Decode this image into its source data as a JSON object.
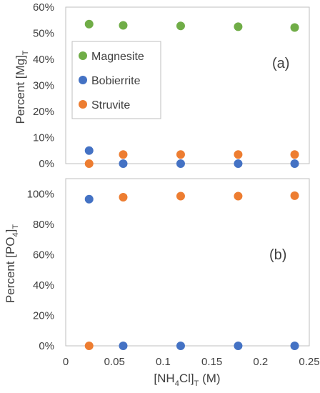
{
  "chart_data": [
    {
      "type": "scatter",
      "panel_label": "(a)",
      "ylabel_main": "Percent [Mg]",
      "ylabel_sub": "T",
      "xlim": [
        0,
        0.25
      ],
      "ylim": [
        0,
        60
      ],
      "y_ticks": [
        "0%",
        "10%",
        "20%",
        "30%",
        "40%",
        "50%",
        "60%"
      ],
      "y_tick_values": [
        0,
        10,
        20,
        30,
        40,
        50,
        60
      ],
      "grid": false,
      "legend_position": "middle-left",
      "series": [
        {
          "name": "Magnesite",
          "color": "#70ad47",
          "x": [
            0.024,
            0.059,
            0.118,
            0.177,
            0.235
          ],
          "y": [
            53.5,
            53.0,
            52.8,
            52.5,
            52.2
          ]
        },
        {
          "name": "Bobierrite",
          "color": "#4472c4",
          "x": [
            0.024,
            0.059,
            0.118,
            0.177,
            0.235
          ],
          "y": [
            5.0,
            0,
            0,
            0,
            0
          ]
        },
        {
          "name": "Struvite",
          "color": "#ed7d31",
          "x": [
            0.024,
            0.059,
            0.118,
            0.177,
            0.235
          ],
          "y": [
            0,
            3.5,
            3.5,
            3.5,
            3.5
          ]
        }
      ]
    },
    {
      "type": "scatter",
      "panel_label": "(b)",
      "ylabel_main": "Percent [PO",
      "ylabel_sub": "4",
      "ylabel_end": "]",
      "ylabel_sub2": "T",
      "xlabel_main": "[NH",
      "xlabel_sub": "4",
      "xlabel_mid": "Cl]",
      "xlabel_sub2": "T",
      "xlabel_end": " (M)",
      "xlim": [
        0,
        0.25
      ],
      "ylim": [
        0,
        110
      ],
      "x_ticks": [
        "0",
        "0.05",
        "0.1",
        "0.15",
        "0.2",
        "0.25"
      ],
      "x_tick_values": [
        0,
        0.05,
        0.1,
        0.15,
        0.2,
        0.25
      ],
      "y_ticks": [
        "0%",
        "20%",
        "40%",
        "60%",
        "80%",
        "100%"
      ],
      "y_tick_values": [
        0,
        20,
        40,
        60,
        80,
        100
      ],
      "grid": false,
      "series": [
        {
          "color": "#4472c4",
          "x": [
            0.024,
            0.059,
            0.118,
            0.177,
            0.235
          ],
          "y": [
            96.5,
            0,
            0,
            0,
            0
          ]
        },
        {
          "color": "#ed7d31",
          "x": [
            0.024,
            0.059,
            0.118,
            0.177,
            0.235
          ],
          "y": [
            0,
            97.8,
            98.5,
            98.5,
            98.8
          ]
        }
      ]
    }
  ]
}
